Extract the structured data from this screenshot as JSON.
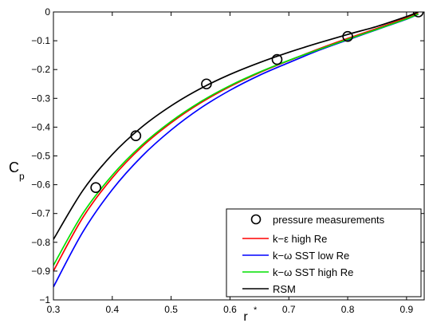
{
  "chart_data": {
    "type": "line",
    "title": "",
    "xlabel": "r",
    "xlabel_sup": "*",
    "ylabel": "C",
    "ylabel_sub": "p",
    "xlim": [
      0.3,
      0.93
    ],
    "ylim": [
      -1,
      0
    ],
    "xticks": [
      0.3,
      0.4,
      0.5,
      0.6,
      0.7,
      0.8,
      0.9
    ],
    "xtick_labels": [
      "0.3",
      "0.4",
      "0.5",
      "0.6",
      "0.7",
      "0.8",
      "0.9"
    ],
    "yticks": [
      -1,
      -0.9,
      -0.8,
      -0.7,
      -0.6,
      -0.5,
      -0.4,
      -0.3,
      -0.2,
      -0.1,
      0
    ],
    "ytick_labels": [
      "−1",
      "−0.9",
      "−0.8",
      "−0.7",
      "−0.6",
      "−0.5",
      "−0.4",
      "−0.3",
      "−0.2",
      "−0.1",
      "0"
    ],
    "grid": false,
    "legend_position": "bottom-right",
    "markers": {
      "name": "pressure measurements",
      "marker": "circle",
      "color": "#000000",
      "x": [
        0.372,
        0.44,
        0.56,
        0.68,
        0.8,
        0.92
      ],
      "y": [
        -0.61,
        -0.43,
        -0.25,
        -0.165,
        -0.085,
        0.0
      ]
    },
    "series": [
      {
        "name": "k−ε high Re",
        "color": "#ff0000",
        "x": [
          0.3,
          0.35,
          0.4,
          0.45,
          0.5,
          0.55,
          0.6,
          0.65,
          0.7,
          0.75,
          0.8,
          0.85,
          0.9,
          0.92
        ],
        "y": [
          -0.9,
          -0.714,
          -0.576,
          -0.469,
          -0.385,
          -0.316,
          -0.259,
          -0.211,
          -0.169,
          -0.129,
          -0.092,
          -0.057,
          -0.021,
          -0.005
        ]
      },
      {
        "name": "k−ω SST low Re",
        "color": "#0000ff",
        "x": [
          0.3,
          0.35,
          0.4,
          0.45,
          0.5,
          0.55,
          0.6,
          0.65,
          0.7,
          0.75,
          0.8,
          0.85,
          0.9,
          0.92
        ],
        "y": [
          -0.955,
          -0.764,
          -0.617,
          -0.502,
          -0.41,
          -0.334,
          -0.272,
          -0.22,
          -0.176,
          -0.134,
          -0.097,
          -0.061,
          -0.025,
          -0.008
        ]
      },
      {
        "name": "k−ω SST high Re",
        "color": "#00e000",
        "x": [
          0.3,
          0.35,
          0.4,
          0.45,
          0.5,
          0.55,
          0.6,
          0.65,
          0.7,
          0.75,
          0.8,
          0.85,
          0.9,
          0.92
        ],
        "y": [
          -0.88,
          -0.7,
          -0.567,
          -0.463,
          -0.38,
          -0.312,
          -0.256,
          -0.209,
          -0.168,
          -0.131,
          -0.095,
          -0.06,
          -0.024,
          -0.007
        ]
      },
      {
        "name": "RSM",
        "color": "#000000",
        "x": [
          0.3,
          0.35,
          0.4,
          0.45,
          0.5,
          0.55,
          0.6,
          0.65,
          0.7,
          0.75,
          0.8,
          0.85,
          0.9,
          0.92
        ],
        "y": [
          -0.79,
          -0.62,
          -0.495,
          -0.4,
          -0.326,
          -0.266,
          -0.217,
          -0.176,
          -0.14,
          -0.108,
          -0.078,
          -0.05,
          -0.016,
          0.0
        ]
      }
    ]
  }
}
